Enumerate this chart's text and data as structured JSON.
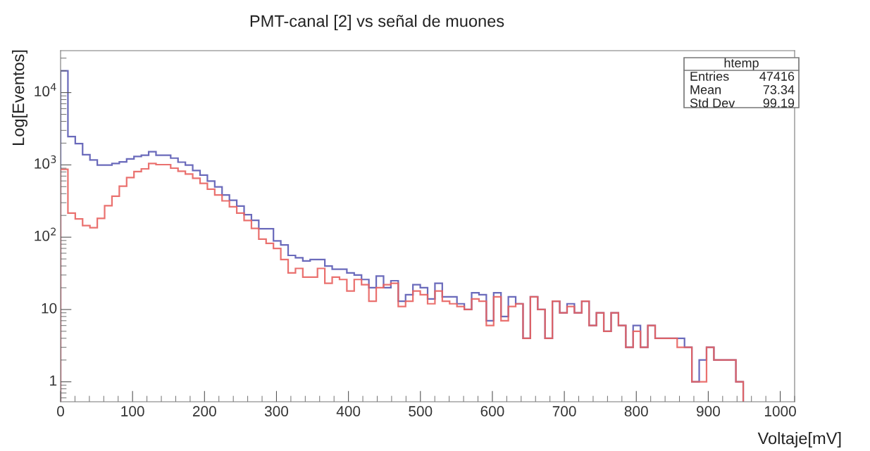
{
  "chart_data": {
    "type": "histogram",
    "title": "PMT-canal [2] vs señal de muones",
    "xlabel": "Voltaje[mV]",
    "ylabel": "Log[Eventos]",
    "bins": [
      0,
      10.2,
      20.4,
      30.6,
      40.8,
      51,
      61.2,
      71.4,
      81.6,
      91.8,
      102,
      112.2,
      122.4,
      132.6,
      142.8,
      153,
      163.2,
      173.4,
      183.6,
      193.8,
      204,
      214.2,
      224.4,
      234.6,
      244.8,
      255,
      265.2,
      275.4,
      285.6,
      295.8,
      306,
      316.2,
      326.4,
      336.6,
      346.8,
      357,
      367.2,
      377.4,
      387.6,
      397.8,
      408,
      418.2,
      428.4,
      438.6,
      448.8,
      459,
      469.2,
      479.4,
      489.6,
      499.8,
      510,
      520.2,
      530.4,
      540.6,
      550.8,
      561,
      571.2,
      581.4,
      591.6,
      601.8,
      612,
      622.2,
      632.4,
      642.6,
      652.8,
      663,
      673.2,
      683.4,
      693.6,
      703.8,
      714,
      724.2,
      734.4,
      744.6,
      754.8,
      765,
      775.2,
      785.4,
      795.6,
      805.8,
      816,
      826.2,
      836.4,
      846.6,
      856.8,
      867,
      877.2,
      887.4,
      897.6,
      907.8,
      918,
      928.2,
      938.4,
      948.6
    ],
    "series": [
      {
        "color": "#5a5ab4",
        "values": [
          20000,
          2460,
          1970,
          1380,
          1170,
          993,
          993,
          1045,
          1100,
          1210,
          1310,
          1360,
          1520,
          1360,
          1360,
          1240,
          1090,
          993,
          836,
          721,
          598,
          497,
          383,
          325,
          270,
          205,
          171,
          131,
          131,
          89,
          78,
          56,
          52,
          47,
          49,
          49,
          40,
          36,
          36,
          32,
          30,
          26,
          20,
          29,
          20,
          25,
          13,
          16,
          22,
          20,
          14,
          23,
          15,
          15,
          12,
          10,
          17,
          16,
          7,
          17,
          8,
          15,
          12,
          4,
          15,
          10,
          4,
          13,
          9,
          12,
          9,
          13,
          6,
          9,
          5,
          9,
          6,
          3,
          6,
          3,
          6,
          4,
          4,
          4,
          4,
          3,
          1,
          2,
          3,
          2,
          2,
          2,
          1
        ]
      },
      {
        "color": "#e8625f",
        "values": [
          870,
          215,
          179,
          145,
          135,
          182,
          273,
          368,
          508,
          669,
          806,
          881,
          1046,
          1008,
          1008,
          901,
          818,
          748,
          654,
          555,
          461,
          383,
          318,
          264,
          215,
          170,
          132,
          94,
          82,
          70,
          49,
          32,
          37,
          28,
          28,
          37,
          23,
          28,
          26,
          18,
          26,
          22,
          13,
          20,
          22,
          23,
          11,
          13,
          18,
          16,
          12,
          18,
          13,
          12,
          11,
          10,
          14,
          13,
          6,
          15,
          7,
          11,
          12,
          4,
          15,
          10,
          4,
          13,
          9,
          11,
          9,
          13,
          6,
          9,
          5,
          9,
          6,
          3,
          5,
          3,
          6,
          4,
          4,
          4,
          3,
          3,
          1,
          1,
          3,
          2,
          2,
          2,
          1
        ]
      }
    ],
    "xlim": [
      0,
      1020
    ],
    "xticks": [
      0,
      100,
      200,
      300,
      400,
      500,
      600,
      700,
      800,
      900,
      1000
    ],
    "ylim": [
      0.53,
      38000
    ],
    "yticks": [
      1,
      10,
      {
        "value": 100,
        "label": "10$^{2}$"
      },
      {
        "value": 1000,
        "label": "10$^{3}$"
      },
      {
        "value": 10000,
        "label": "10$^{4}$"
      }
    ],
    "log": "y",
    "grid": false,
    "legend": false,
    "annotations": [
      "htemp",
      "Entries",
      "47416",
      "Mean",
      "73.34",
      "Std Dev",
      "99.19"
    ]
  }
}
